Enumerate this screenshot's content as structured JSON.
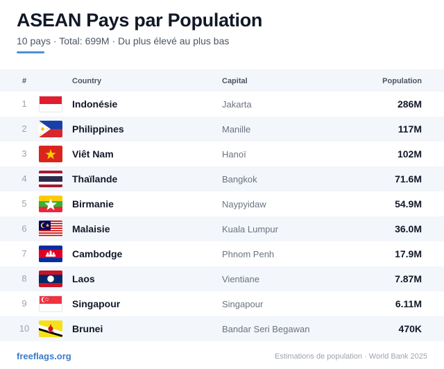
{
  "header": {
    "title": "ASEAN Pays par Population",
    "subtitle": "10 pays · Total: 699M · Du plus élevé au plus bas"
  },
  "table": {
    "columns": {
      "rank": "#",
      "country": "Country",
      "capital": "Capital",
      "population": "Population"
    },
    "rows": [
      {
        "rank": "1",
        "flag": "indonesia-flag-icon",
        "country": "Indonésie",
        "capital": "Jakarta",
        "population": "286M"
      },
      {
        "rank": "2",
        "flag": "philippines-flag-icon",
        "country": "Philippines",
        "capital": "Manille",
        "population": "117M"
      },
      {
        "rank": "3",
        "flag": "vietnam-flag-icon",
        "country": "Viêt Nam",
        "capital": "Hanoï",
        "population": "102M"
      },
      {
        "rank": "4",
        "flag": "thailand-flag-icon",
        "country": "Thaïlande",
        "capital": "Bangkok",
        "population": "71.6M"
      },
      {
        "rank": "5",
        "flag": "myanmar-flag-icon",
        "country": "Birmanie",
        "capital": "Naypyidaw",
        "population": "54.9M"
      },
      {
        "rank": "6",
        "flag": "malaysia-flag-icon",
        "country": "Malaisie",
        "capital": "Kuala Lumpur",
        "population": "36.0M"
      },
      {
        "rank": "7",
        "flag": "cambodia-flag-icon",
        "country": "Cambodge",
        "capital": "Phnom Penh",
        "population": "17.9M"
      },
      {
        "rank": "8",
        "flag": "laos-flag-icon",
        "country": "Laos",
        "capital": "Vientiane",
        "population": "7.87M"
      },
      {
        "rank": "9",
        "flag": "singapore-flag-icon",
        "country": "Singapour",
        "capital": "Singapour",
        "population": "6.11M"
      },
      {
        "rank": "10",
        "flag": "brunei-flag-icon",
        "country": "Brunei",
        "capital": "Bandar Seri Begawan",
        "population": "470K"
      }
    ]
  },
  "footer": {
    "brand": "freeflags.org",
    "source": "Estimations de population · World Bank 2025"
  },
  "colors": {
    "accent": "#4a8fd8",
    "brand": "#3a7bc8",
    "row_alt": "#f3f6fa"
  }
}
